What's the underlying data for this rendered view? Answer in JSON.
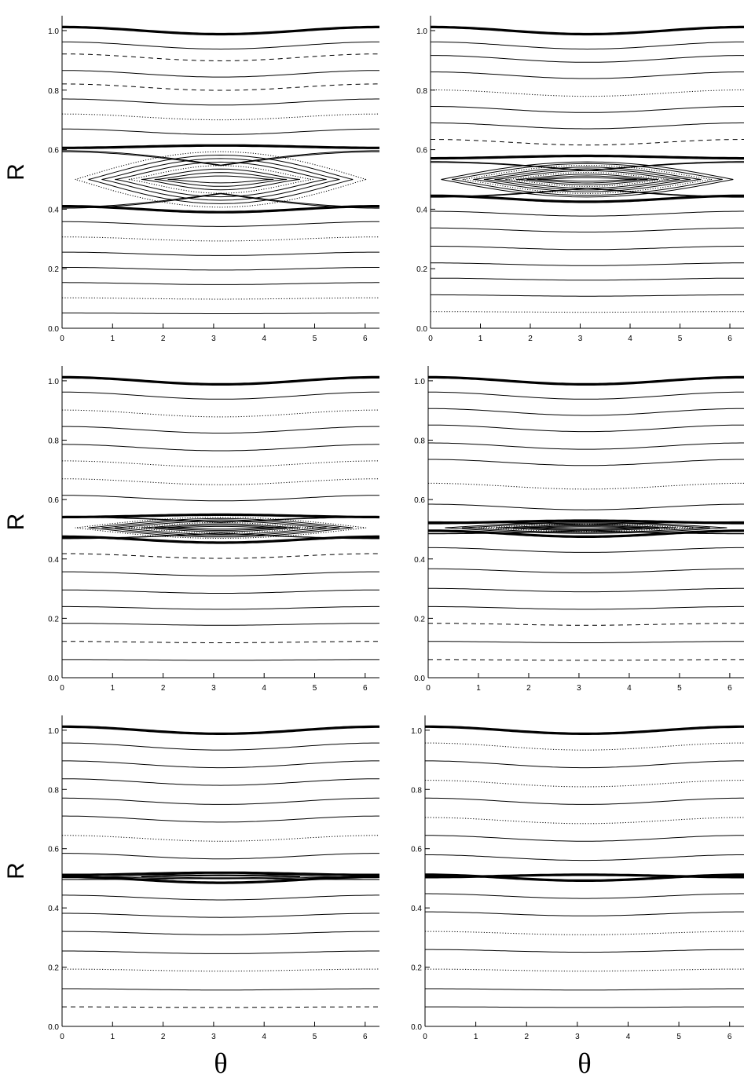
{
  "chart_data": [
    {
      "type": "contour",
      "panel": "top-left",
      "xlim": [
        0,
        6.283
      ],
      "ylim": [
        0,
        1.05
      ],
      "xticks": [
        "0",
        "1",
        "2",
        "3",
        "4",
        "5",
        "6"
      ],
      "yticks": [
        "0.0",
        "0.2",
        "0.4",
        "0.6",
        "0.8",
        "1.0"
      ],
      "ylabel": "R",
      "xlabel": "",
      "island": {
        "center_theta": 3.14,
        "center_r": 0.5,
        "separatrix_r_min": 0.4,
        "separatrix_r_max": 0.61,
        "half_width": 0.105
      },
      "upper_bold_line": {
        "r": 1.0,
        "amplitude": 0.012
      },
      "upper_lines": [
        0.95,
        0.91,
        0.855,
        0.81,
        0.76,
        0.71,
        0.66
      ],
      "upper_dashed": [
        0.91,
        0.81
      ],
      "upper_dotted": [
        0.71
      ],
      "lower_lines": [
        0.35,
        0.3,
        0.25,
        0.2,
        0.15,
        0.1,
        0.05
      ],
      "lower_dotted": [
        0.3,
        0.1
      ],
      "inner_contours": 8
    },
    {
      "type": "contour",
      "panel": "top-right",
      "xlim": [
        0,
        6.283
      ],
      "ylim": [
        0,
        1.05
      ],
      "xticks": [
        "0",
        "1",
        "2",
        "3",
        "4",
        "5",
        "6"
      ],
      "yticks": [
        "0.0",
        "0.2",
        "0.4",
        "0.6",
        "0.8",
        "1.0"
      ],
      "ylabel": "",
      "xlabel": "",
      "island": {
        "center_theta": 3.14,
        "center_r": 0.5,
        "separatrix_r_min": 0.435,
        "separatrix_r_max": 0.575,
        "half_width": 0.065
      },
      "upper_bold_line": {
        "r": 1.0,
        "amplitude": 0.012
      },
      "upper_lines": [
        0.95,
        0.905,
        0.85,
        0.79,
        0.735,
        0.68,
        0.625
      ],
      "upper_dashed": [
        0.625
      ],
      "upper_dotted": [
        0.79
      ],
      "lower_lines": [
        0.385,
        0.33,
        0.27,
        0.215,
        0.165,
        0.11,
        0.055
      ],
      "lower_dotted": [
        0.055
      ],
      "inner_contours": 10
    },
    {
      "type": "contour",
      "panel": "middle-left",
      "xlim": [
        0,
        6.283
      ],
      "ylim": [
        0,
        1.05
      ],
      "xticks": [
        "0",
        "1",
        "2",
        "3",
        "4",
        "5",
        "6"
      ],
      "yticks": [
        "0.0",
        "0.2",
        "0.4",
        "0.6",
        "0.8",
        "1.0"
      ],
      "ylabel": "R",
      "xlabel": "",
      "island": {
        "center_theta": 3.14,
        "center_r": 0.505,
        "separatrix_r_min": 0.465,
        "separatrix_r_max": 0.545,
        "half_width": 0.04
      },
      "upper_bold_line": {
        "r": 1.0,
        "amplitude": 0.012
      },
      "upper_lines": [
        0.95,
        0.89,
        0.835,
        0.775,
        0.72,
        0.66,
        0.605
      ],
      "upper_dashed": [],
      "upper_dotted": [
        0.89,
        0.72,
        0.66
      ],
      "lower_lines": [
        0.41,
        0.35,
        0.29,
        0.235,
        0.18,
        0.12,
        0.06
      ],
      "lower_dashed": [
        0.41,
        0.12
      ],
      "inner_contours": 8
    },
    {
      "type": "contour",
      "panel": "middle-right",
      "xlim": [
        0,
        6.283
      ],
      "ylim": [
        0,
        1.05
      ],
      "xticks": [
        "0",
        "1",
        "2",
        "3",
        "4",
        "5",
        "6"
      ],
      "yticks": [
        "0.0",
        "0.2",
        "0.4",
        "0.6",
        "0.8",
        "1.0"
      ],
      "ylabel": "",
      "xlabel": "",
      "island": {
        "center_theta": 3.14,
        "center_r": 0.505,
        "separatrix_r_min": 0.485,
        "separatrix_r_max": 0.525,
        "half_width": 0.022
      },
      "upper_bold_line": {
        "r": 1.0,
        "amplitude": 0.012
      },
      "upper_lines": [
        0.95,
        0.895,
        0.84,
        0.78,
        0.725,
        0.645,
        0.575
      ],
      "upper_dashed": [],
      "upper_dotted": [
        0.645
      ],
      "lower_lines": [
        0.43,
        0.36,
        0.295,
        0.235,
        0.18,
        0.12,
        0.06
      ],
      "lower_dashed": [
        0.18,
        0.06
      ],
      "inner_contours": 6
    },
    {
      "type": "contour",
      "panel": "bottom-left",
      "xlim": [
        0,
        6.283
      ],
      "ylim": [
        0,
        1.05
      ],
      "xticks": [
        "0",
        "1",
        "2",
        "3",
        "4",
        "5",
        "6"
      ],
      "yticks": [
        "0.0",
        "0.2",
        "0.4",
        "0.6",
        "0.8",
        "1.0"
      ],
      "ylabel": "R",
      "xlabel": "θ",
      "island": {
        "center_theta": 3.14,
        "center_r": 0.505,
        "separatrix_r_min": 0.495,
        "separatrix_r_max": 0.515,
        "half_width": 0.01
      },
      "upper_bold_line": {
        "r": 1.0,
        "amplitude": 0.012
      },
      "upper_lines": [
        0.945,
        0.885,
        0.825,
        0.76,
        0.7,
        0.635,
        0.575
      ],
      "upper_dashed": [],
      "upper_dotted": [
        0.635
      ],
      "lower_lines": [
        0.435,
        0.375,
        0.315,
        0.25,
        0.19,
        0.125,
        0.065
      ],
      "lower_dashed": [
        0.065
      ],
      "lower_dotted": [
        0.19
      ],
      "inner_contours": 2
    },
    {
      "type": "contour",
      "panel": "bottom-right",
      "xlim": [
        0,
        6.283
      ],
      "ylim": [
        0,
        1.05
      ],
      "xticks": [
        "0",
        "1",
        "2",
        "3",
        "4",
        "5",
        "6"
      ],
      "yticks": [
        "0.0",
        "0.2",
        "0.4",
        "0.6",
        "0.8",
        "1.0"
      ],
      "ylabel": "",
      "xlabel": "θ",
      "island": {
        "center_theta": 3.14,
        "center_r": 0.505,
        "separatrix_r_min": 0.502,
        "separatrix_r_max": 0.508,
        "half_width": 0.003
      },
      "upper_bold_line": {
        "r": 1.0,
        "amplitude": 0.012
      },
      "upper_lines": [
        0.945,
        0.885,
        0.82,
        0.76,
        0.695,
        0.635,
        0.57
      ],
      "upper_dashed": [],
      "upper_dotted": [
        0.945,
        0.82,
        0.695
      ],
      "lower_lines": [
        0.44,
        0.38,
        0.315,
        0.255,
        0.19,
        0.125,
        0.065
      ],
      "lower_dotted": [
        0.315,
        0.19
      ],
      "inner_contours": 0
    }
  ]
}
